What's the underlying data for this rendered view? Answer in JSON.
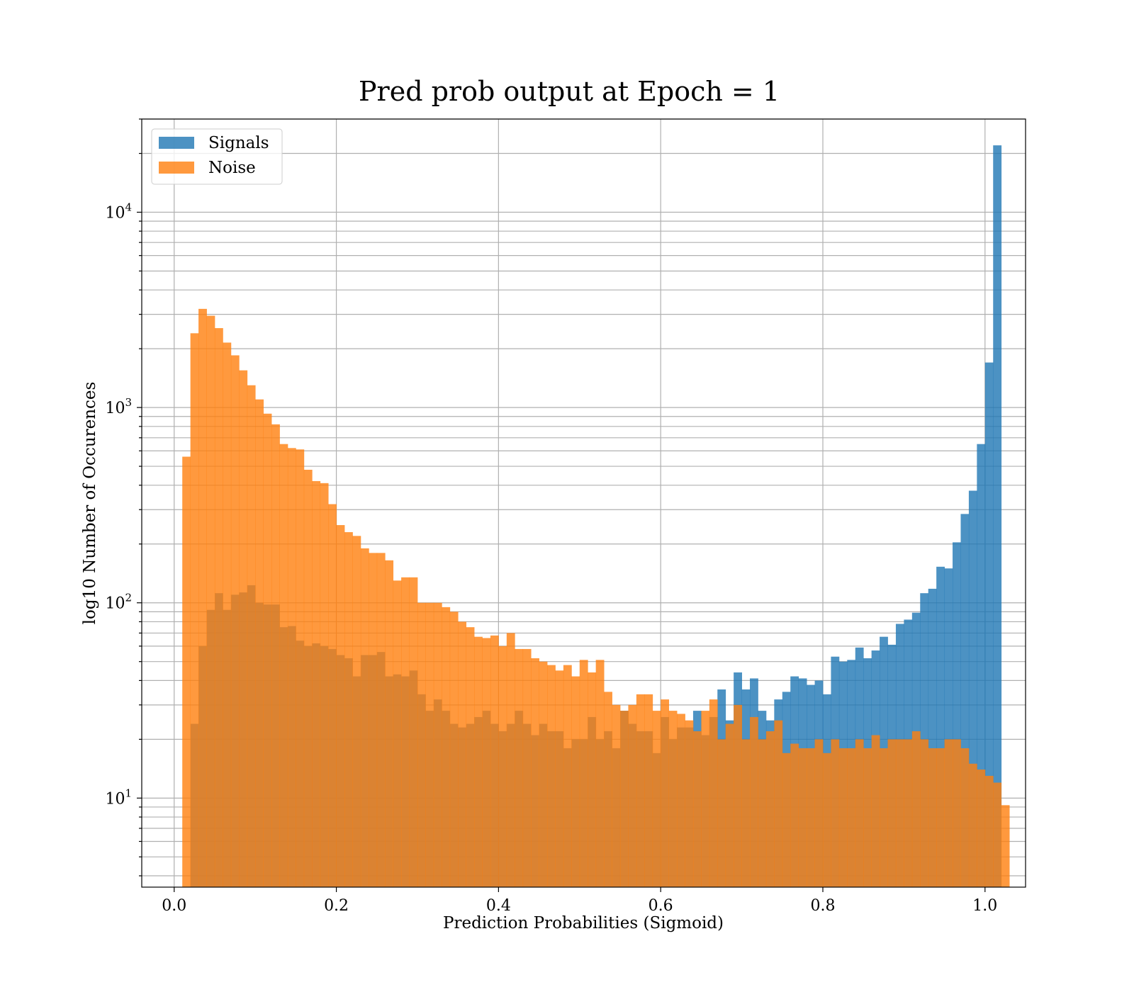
{
  "chart_data": {
    "type": "histogram",
    "title": "Pred prob output at Epoch = 1",
    "xlabel": "Prediction Probabilities (Sigmoid)",
    "ylabel": "log10 Number of Occurences",
    "xlim": [
      -0.04,
      1.05
    ],
    "ylim": [
      3.5,
      30000
    ],
    "yscale": "log",
    "xticks": [
      0.0,
      0.2,
      0.4,
      0.6,
      0.8,
      1.0
    ],
    "xtick_labels": [
      "0.0",
      "0.2",
      "0.4",
      "0.6",
      "0.8",
      "1.0"
    ],
    "yticks": [
      10,
      100,
      1000,
      10000
    ],
    "ytick_labels": [
      {
        "base": "10",
        "exp": "1"
      },
      {
        "base": "10",
        "exp": "2"
      },
      {
        "base": "10",
        "exp": "3"
      },
      {
        "base": "10",
        "exp": "4"
      }
    ],
    "grid": true,
    "legend_position": "upper-left",
    "series": [
      {
        "name": "Signals",
        "color": "#1f77b4",
        "alpha": 0.8,
        "bin_start": 0.0,
        "bin_width": 0.01,
        "values": [
          0,
          0,
          24,
          60,
          92,
          112,
          92,
          110,
          113,
          123,
          100,
          98,
          98,
          75,
          76,
          64,
          60,
          62,
          60,
          58,
          54,
          52,
          42,
          54,
          54,
          56,
          42,
          43,
          42,
          45,
          34,
          28,
          32,
          28,
          24,
          23,
          24,
          26,
          28,
          24,
          22,
          24,
          28,
          24,
          21,
          24,
          22,
          22,
          18,
          20,
          20,
          26,
          20,
          22,
          18,
          28,
          24,
          22,
          22,
          17,
          26,
          20,
          23,
          23,
          28,
          21,
          26,
          36,
          25,
          44,
          36,
          41,
          28,
          25,
          32,
          35,
          42,
          41,
          38,
          40,
          34,
          53,
          50,
          51,
          59,
          52,
          57,
          67,
          61,
          78,
          82,
          89,
          112,
          118,
          153,
          150,
          204,
          285,
          375,
          650,
          1700,
          22000
        ]
      },
      {
        "name": "Noise",
        "color": "#ff7f0e",
        "alpha": 0.8,
        "bin_start": 0.0,
        "bin_width": 0.01,
        "values": [
          0,
          560,
          2400,
          3200,
          2950,
          2550,
          2150,
          1850,
          1550,
          1300,
          1100,
          930,
          820,
          650,
          620,
          610,
          480,
          420,
          410,
          320,
          250,
          230,
          220,
          190,
          180,
          180,
          165,
          130,
          135,
          135,
          100,
          100,
          100,
          95,
          90,
          80,
          75,
          67,
          66,
          68,
          60,
          70,
          58,
          58,
          52,
          50,
          48,
          45,
          48,
          42,
          51,
          44,
          51,
          35,
          30,
          28,
          30,
          34,
          34,
          28,
          32,
          28,
          27,
          25,
          22,
          28,
          32,
          20,
          24,
          30,
          20,
          26,
          20,
          22,
          25,
          17,
          19,
          18,
          18,
          20,
          17,
          20,
          18,
          18,
          20,
          18,
          21,
          18,
          20,
          20,
          20,
          22,
          20,
          18,
          18,
          20,
          20,
          18,
          15,
          14,
          13,
          12,
          9.2
        ]
      }
    ]
  }
}
